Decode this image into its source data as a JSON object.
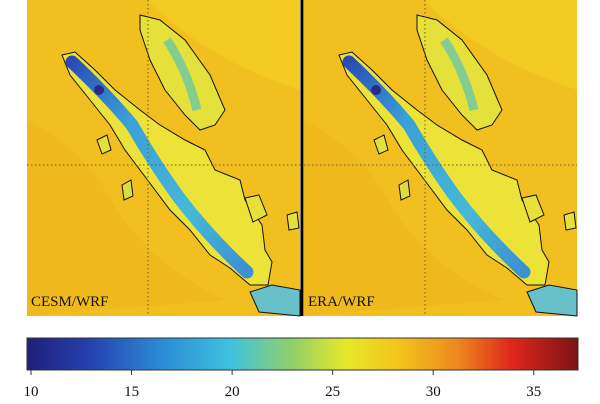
{
  "panels": [
    {
      "label": "CESM/WRF"
    },
    {
      "label": "ERA/WRF"
    }
  ],
  "colorbar": {
    "lim": [
      9.8,
      37.2
    ],
    "ticks": [
      10,
      15,
      20,
      25,
      30,
      35
    ]
  }
}
